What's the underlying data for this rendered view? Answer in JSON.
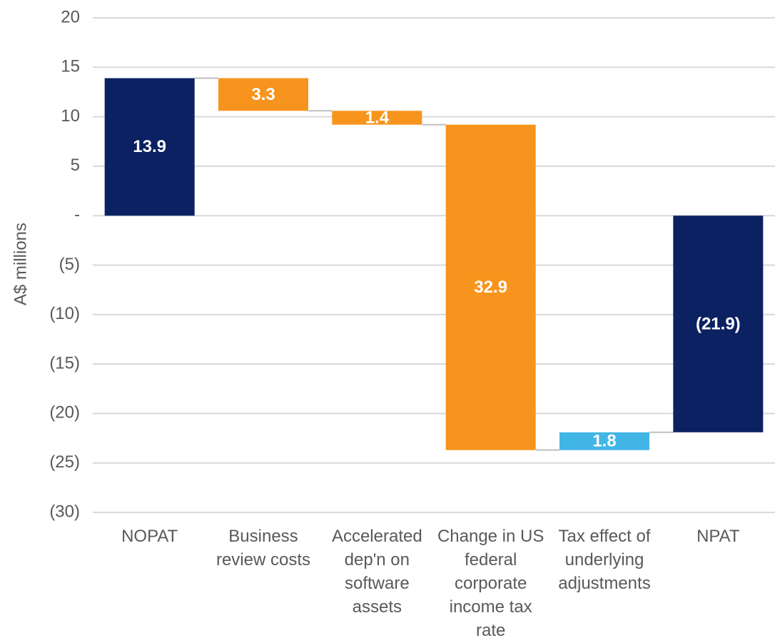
{
  "chart_data": {
    "type": "waterfall",
    "y_label": "A$ millions",
    "categories": [
      "NOPAT",
      "Business review costs",
      "Accelerated dep'n on software assets",
      "Change in US federal corporate income tax rate",
      "Tax effect of underlying adjustments",
      "NPAT"
    ],
    "measure": [
      "total",
      "relative",
      "relative",
      "relative",
      "relative",
      "total"
    ],
    "values": [
      13.9,
      -3.3,
      -1.4,
      -32.9,
      1.8,
      -21.9
    ],
    "value_labels": [
      "13.9",
      "3.3",
      "1.4",
      "32.9",
      "1.8",
      "(21.9)"
    ],
    "colors": [
      "#0b2161",
      "#f7941d",
      "#f7941d",
      "#f7941d",
      "#41b6e6",
      "#0b2161"
    ],
    "ylim": [
      -30,
      20
    ],
    "yticks": [
      20,
      15,
      10,
      5,
      {
        "value": 0,
        "label": "-"
      },
      {
        "value": -5,
        "label": "(5)"
      },
      {
        "value": -10,
        "label": "(10)"
      },
      {
        "value": -15,
        "label": "(15)"
      },
      {
        "value": -20,
        "label": "(20)"
      },
      {
        "value": -25,
        "label": "(25)"
      },
      {
        "value": -30,
        "label": "(30)"
      }
    ],
    "grid": true
  }
}
